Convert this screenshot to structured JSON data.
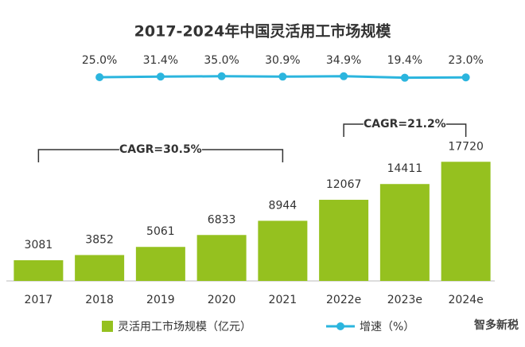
{
  "chart_data": {
    "type": "bar",
    "title": "2017-2024年中国灵活用工市场规模",
    "categories": [
      "2017",
      "2018",
      "2019",
      "2020",
      "2021",
      "2022e",
      "2023e",
      "2024e"
    ],
    "ylim": [
      0,
      20000
    ],
    "y2lim": [
      -500,
      500
    ],
    "series": [
      {
        "name": "灵活用工市场规模（亿元）",
        "type": "bar",
        "color": "#95c11f",
        "values": [
          3081,
          3852,
          5061,
          6833,
          8944,
          12067,
          14411,
          17720
        ]
      },
      {
        "name": "增速（%）",
        "type": "line",
        "axis": "y2",
        "color": "#2bb5de",
        "values": [
          null,
          25.0,
          31.4,
          35.0,
          30.9,
          34.9,
          19.4,
          23.0
        ],
        "value_labels": [
          null,
          "25.0%",
          "31.4%",
          "35.0%",
          "30.9%",
          "34.9%",
          "19.4%",
          "23.0%"
        ]
      }
    ],
    "annotations": [
      "CAGR=30.5%",
      "CAGR=21.2%"
    ],
    "watermark": "智多新税"
  }
}
